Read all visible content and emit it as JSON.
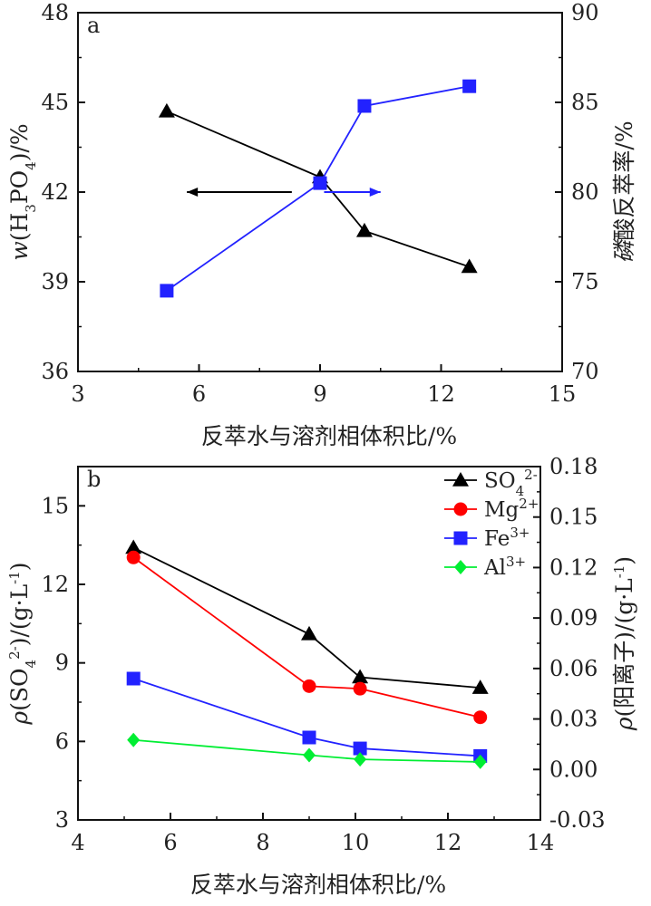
{
  "chart_data": [
    {
      "type": "line",
      "panel_label": "a",
      "xlabel": "反萃水与溶剂相体积比/%",
      "ylabel": "w(H₃PO₄)/%",
      "y2label": "磷酸反萃率/%",
      "xlim": [
        3,
        15
      ],
      "xticks": [
        3,
        6,
        9,
        12,
        15
      ],
      "ylim": [
        36,
        48
      ],
      "yticks": [
        36,
        39,
        42,
        45,
        48
      ],
      "y2lim": [
        70,
        90
      ],
      "y2ticks": [
        70,
        75,
        80,
        85,
        90
      ],
      "grid": false,
      "series": [
        {
          "axis": "left",
          "marker": "triangle",
          "color": "#000000",
          "x": [
            5.2,
            9.0,
            10.1,
            12.7
          ],
          "y": [
            44.7,
            42.5,
            40.7,
            39.5
          ]
        },
        {
          "axis": "right",
          "marker": "square",
          "color": "#2222ff",
          "x": [
            5.2,
            9.0,
            10.1,
            12.7
          ],
          "y": [
            74.5,
            80.5,
            84.8,
            85.9
          ]
        }
      ],
      "annotations": [
        {
          "type": "arrow",
          "direction": "left",
          "color": "#000000",
          "from": [
            8.3,
            42.0
          ],
          "to": [
            5.7,
            42.0
          ]
        },
        {
          "type": "arrow",
          "direction": "right",
          "color": "#2222ff",
          "from": [
            9.1,
            42.0
          ],
          "to": [
            10.5,
            42.0
          ]
        }
      ]
    },
    {
      "type": "line",
      "panel_label": "b",
      "xlabel": "反萃水与溶剂相体积比/%",
      "ylabel": "ρ(SO₄²⁻)/(g·L⁻¹)",
      "y2label": "ρ(阳离子)/(g·L⁻¹)",
      "xlim": [
        4,
        14
      ],
      "xticks": [
        4,
        6,
        8,
        10,
        12,
        14
      ],
      "ylim": [
        3,
        16.5
      ],
      "yticks": [
        3,
        6,
        9,
        12,
        15
      ],
      "y2lim": [
        -0.03,
        0.18
      ],
      "y2ticks": [
        "-0.03",
        "0.00",
        "0.03",
        "0.06",
        "0.09",
        "0.12",
        "0.15",
        "0.18"
      ],
      "grid": false,
      "legend_position": "top-right",
      "series": [
        {
          "name": "SO₄²⁻",
          "axis": "left",
          "marker": "triangle",
          "color": "#000000",
          "x": [
            5.2,
            9.0,
            10.1,
            12.7
          ],
          "y": [
            13.4,
            10.1,
            8.45,
            8.05
          ]
        },
        {
          "name": "Mg²⁺",
          "axis": "right",
          "marker": "circle",
          "color": "#ff0000",
          "x": [
            5.2,
            9.0,
            10.1,
            12.7
          ],
          "y": [
            0.126,
            0.0495,
            0.048,
            0.031
          ]
        },
        {
          "name": "Fe³⁺",
          "axis": "right",
          "marker": "square",
          "color": "#2222ff",
          "x": [
            5.2,
            9.0,
            10.1,
            12.7
          ],
          "y": [
            0.054,
            0.019,
            0.0125,
            0.008
          ]
        },
        {
          "name": "Al³⁺",
          "axis": "right",
          "marker": "diamond",
          "color": "#00ee33",
          "x": [
            5.2,
            9.0,
            10.1,
            12.7
          ],
          "y": [
            0.0175,
            0.0085,
            0.006,
            0.0045
          ]
        }
      ]
    }
  ]
}
